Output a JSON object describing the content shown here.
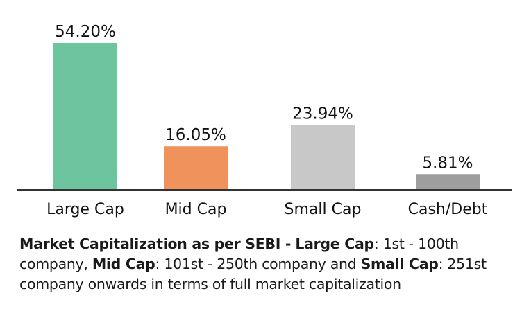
{
  "chart_data": {
    "type": "bar",
    "categories": [
      "Large Cap",
      "Mid Cap",
      "Small Cap",
      "Cash/Debt"
    ],
    "values": [
      54.2,
      16.05,
      23.94,
      5.81
    ],
    "value_labels": [
      "54.20%",
      "16.05%",
      "23.94%",
      "5.81%"
    ],
    "colors": [
      "#6cc59f",
      "#f0925c",
      "#c8c8c8",
      "#9e9e9e"
    ],
    "axis_color": "#333333",
    "title": "",
    "xlabel": "",
    "ylabel": "",
    "ylim": [
      0,
      54.2
    ],
    "grid": false,
    "legend": "none"
  },
  "note": {
    "heading": "Market Capitalization as per SEBI -",
    "large_cap_label": "Large Cap",
    "large_cap_text": ": 1st - 100th company, ",
    "mid_cap_label": "Mid Cap",
    "mid_cap_text": ": 101st - 250th company and ",
    "small_cap_label": "Small Cap",
    "small_cap_text": ": 251st company onwards in terms of full market capitalization"
  }
}
